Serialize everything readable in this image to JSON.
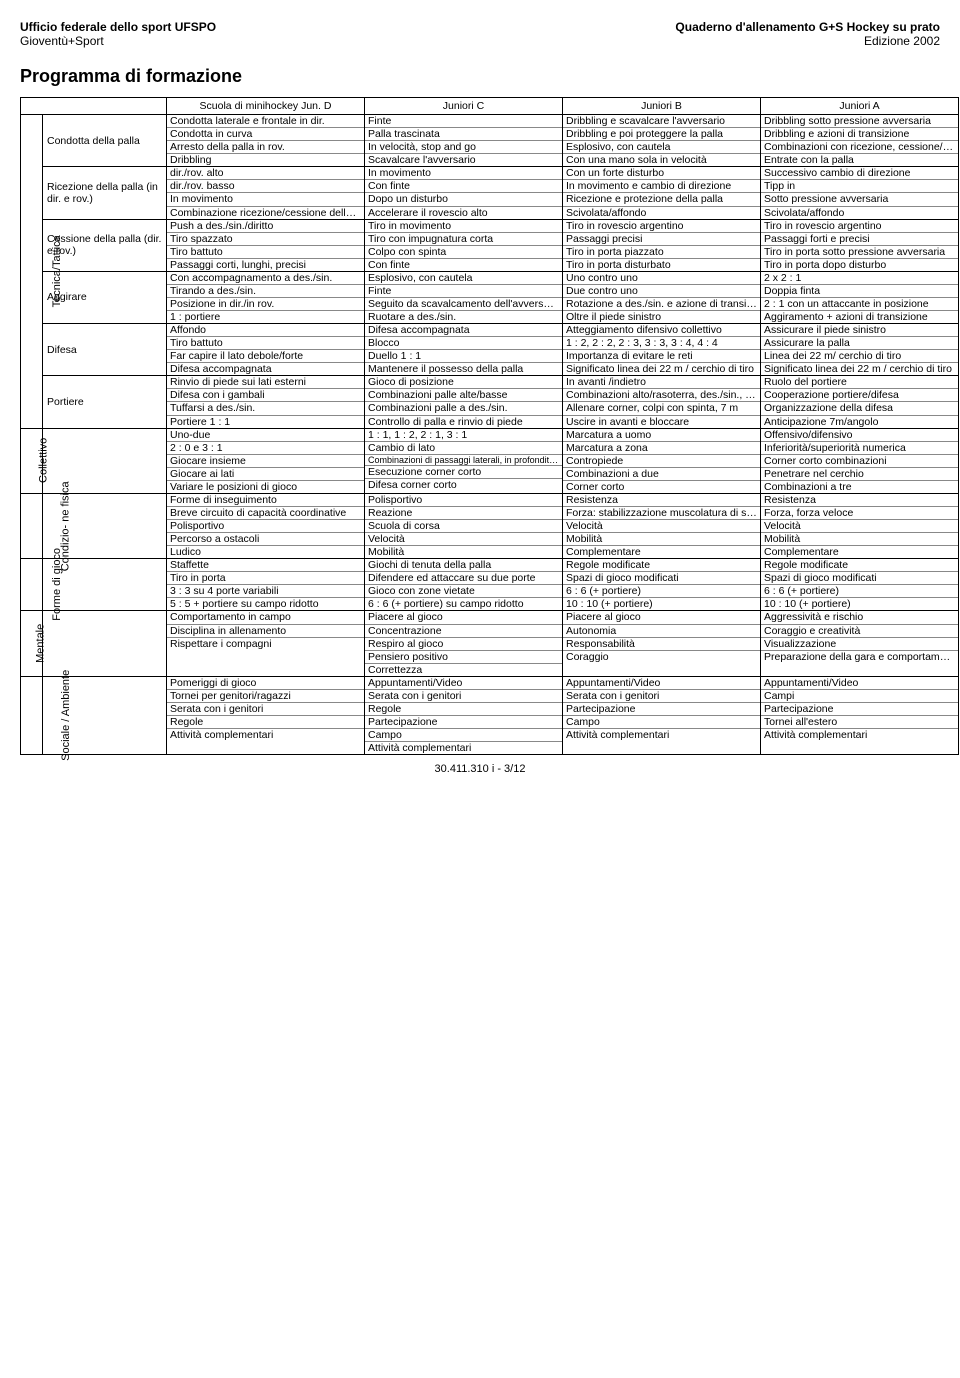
{
  "header": {
    "org": "Ufficio federale dello sport UFSPO",
    "sub_org": "Gioventù+Sport",
    "quaderno": "Quaderno d'allenamento G+S Hockey su prato",
    "edition": "Edizione 2002"
  },
  "page_title": "Programma di formazione",
  "levels": [
    "Scuola di minihockey Jun. D",
    "Juniori C",
    "Juniori B",
    "Juniori A"
  ],
  "sections": [
    {
      "vgroup": "Tecnica/Tattica",
      "categories": [
        {
          "label": "Condotta della palla",
          "rows": [
            [
              "Condotta laterale e frontale in dir.",
              "Finte",
              "Dribbling e scavalcare l'avversario",
              "Dribbling sotto pressione avversaria"
            ],
            [
              "Condotta in curva",
              "Palla trascinata",
              "Dribbling e poi proteggere la palla",
              "Dribbling e azioni di transizione"
            ],
            [
              "Arresto della palla in rov.",
              "In velocità, stop and go",
              "Esplosivo, con cautela",
              "Combinazioni con ricezione, cessione/dribbling"
            ],
            [
              "Dribbling",
              "Scavalcare l'avversario",
              "Con una mano sola in velocità",
              "Entrate con la palla"
            ]
          ]
        },
        {
          "label": "Ricezione della palla (in dir. e rov.)",
          "rows": [
            [
              "dir./rov. alto",
              "In movimento",
              "Con un forte disturbo",
              "Successivo cambio di direzione"
            ],
            [
              "dir./rov. basso",
              "Con finte",
              "In movimento e cambio di direzione",
              "Tipp in"
            ],
            [
              "In movimento",
              "Dopo un disturbo",
              "Ricezione e protezione della palla",
              "Sotto pressione avversaria"
            ],
            [
              "Combinazione ricezione/cessione della palla",
              "Accelerare il rovescio alto",
              "Scivolata/affondo",
              "Scivolata/affondo"
            ]
          ]
        },
        {
          "label": "Cessione della palla (dir. e rov.)",
          "rows": [
            [
              "Push a des./sin./diritto",
              "Tiro in movimento",
              "Tiro in rovescio argentino",
              "Tiro in rovescio argentino"
            ],
            [
              "Tiro spazzato",
              "Tiro con impugnatura corta",
              "Passaggi precisi",
              "Passaggi forti e precisi"
            ],
            [
              "Tiro battuto",
              "Colpo con spinta",
              "Tiro in porta piazzato",
              "Tiro in porta sotto pressione avversaria"
            ],
            [
              "Passaggi corti, lunghi, precisi",
              "Con finte",
              "Tiro in porta disturbato",
              "Tiro in porta dopo disturbo"
            ]
          ]
        },
        {
          "label": "Aggirare",
          "rows": [
            [
              "Con accompagnamento a des./sin.",
              "Esplosivo, con cautela",
              "Uno contro uno",
              "2 x 2 : 1"
            ],
            [
              "Tirando a des./sin.",
              "Finte",
              "Due contro uno",
              "Doppia finta"
            ],
            [
              "Posizione in dir./in rov.",
              "Seguito da scavalcamento dell'avversario",
              "Rotazione a des./sin. e azione di transizione",
              "2 : 1 con un attaccante in posizione"
            ],
            [
              "1 : portiere",
              "Ruotare a des./sin.",
              "Oltre il piede sinistro",
              "Aggiramento + azioni di transizione"
            ]
          ]
        },
        {
          "label": "Difesa",
          "rows": [
            [
              "Affondo",
              "Difesa accompagnata",
              "Atteggiamento difensivo collettivo",
              "Assicurare il piede sinistro"
            ],
            [
              "Tiro battuto",
              "Blocco",
              "1 : 2, 2 : 2, 2 : 3, 3 : 3, 3 : 4, 4 : 4",
              "Assicurare la palla"
            ],
            [
              "Far capire il lato debole/forte",
              "Duello 1 : 1",
              "Importanza di evitare le reti",
              "Linea dei 22 m/ cerchio di tiro"
            ],
            [
              "Difesa accompagnata",
              "Mantenere il possesso della palla",
              "Significato linea dei 22 m / cerchio di tiro",
              "Significato linea dei 22 m / cerchio di tiro"
            ]
          ]
        },
        {
          "label": "Portiere",
          "rows": [
            [
              "Rinvio di piede sui lati esterni",
              "Gioco di posizione",
              "In avanti /indietro",
              "Ruolo del portiere"
            ],
            [
              "Difesa con i gambali",
              "Combinazioni palle alte/basse",
              "Combinazioni alto/rasoterra, des./sin., forte/ piano",
              "Cooperazione portiere/difesa"
            ],
            [
              "Tuffarsi a des./sin.",
              "Combinazioni palle a des./sin.",
              "Allenare corner, colpi con spinta, 7 m",
              "Organizzazione della difesa"
            ],
            [
              "Portiere 1 : 1",
              "Controllo di palla e rinvio di piede",
              "Uscire in avanti e bloccare",
              "Anticipazione 7m/angolo"
            ]
          ]
        }
      ]
    },
    {
      "vgroup": "Collettivo",
      "categories": [
        {
          "label": "",
          "rows": [
            [
              "Uno-due",
              "1 : 1, 1 : 2, 2 : 1, 3 : 1",
              "Marcatura a uomo",
              "Offensivo/difensivo"
            ],
            [
              "2 : 0 e 3 : 1",
              "Cambio di lato",
              "Marcatura a zona",
              "Inferiorità/superiorità numerica"
            ],
            [
              "Giocare insieme",
              "Combinazioni di passaggi laterali, in profondità, in diagonale",
              "Contropiede",
              "Corner corto combinazioni"
            ],
            [
              "Giocare ai lati",
              "Esecuzione corner corto",
              "Combinazioni a due",
              "Penetrare nel cerchio"
            ],
            [
              "Variare le posizioni di gioco",
              "Difesa corner corto",
              "Corner corto",
              "Combinazioni a tre"
            ]
          ]
        }
      ]
    },
    {
      "vgroup": "Condizio- ne fisica",
      "categories": [
        {
          "label": "",
          "rows": [
            [
              "Forme di inseguimento",
              "Polisportivo",
              "Resistenza",
              "Resistenza"
            ],
            [
              "Breve circuito di capacità coordinative",
              "Reazione",
              "Forza: stabilizzazione muscolatura di sostegno",
              "Forza, forza veloce"
            ],
            [
              "Polisportivo",
              "Scuola di corsa",
              "Velocità",
              "Velocità"
            ],
            [
              "Percorso a ostacoli",
              "Velocità",
              "Mobilità",
              "Mobilità"
            ],
            [
              "Ludico",
              "Mobilità",
              "Complementare",
              "Complementare"
            ]
          ]
        }
      ]
    },
    {
      "vgroup": "Forme di gioco",
      "categories": [
        {
          "label": "",
          "rows": [
            [
              "Staffette",
              "Giochi di tenuta della palla",
              "Regole modificate",
              "Regole modificate"
            ],
            [
              "Tiro in porta",
              "Difendere ed attaccare su due porte",
              "Spazi di gioco modificati",
              "Spazi di gioco modificati"
            ],
            [
              "3 : 3 su 4 porte variabili",
              "Gioco con zone vietate",
              "6 : 6 (+ portiere)",
              "6 : 6 (+ portiere)"
            ],
            [
              "5 : 5 + portiere su campo ridotto",
              "6 : 6 (+ portiere) su campo ridotto",
              "10 : 10 (+ portiere)",
              "10 : 10 (+ portiere)"
            ]
          ]
        }
      ]
    },
    {
      "vgroup": "Mentale",
      "categories": [
        {
          "label": "",
          "rows": [
            [
              "Comportamento in campo",
              "Piacere al gioco",
              "Piacere al gioco",
              "Aggressività e rischio"
            ],
            [
              "Disciplina in allenamento",
              "Concentrazione",
              "Autonomia",
              "Coraggio e creatività"
            ],
            [
              "Rispettare i compagni",
              "Respiro al gioco",
              "Responsabilità",
              "Visualizzazione"
            ],
            [
              "",
              "Pensiero positivo",
              "Coraggio",
              "Preparazione della gara e comportamento"
            ],
            [
              "",
              "Correttezza",
              "",
              ""
            ]
          ]
        }
      ]
    },
    {
      "vgroup": "Sociale / Ambiente",
      "categories": [
        {
          "label": "",
          "rows": [
            [
              "Pomeriggi di gioco",
              "Appuntamenti/Video",
              "Appuntamenti/Video",
              "Appuntamenti/Video"
            ],
            [
              "Tornei per genitori/ragazzi",
              "Serata con i genitori",
              "Serata con i genitori",
              "Campi"
            ],
            [
              "Serata con i genitori",
              "Regole",
              "Partecipazione",
              "Partecipazione"
            ],
            [
              "Regole",
              "Partecipazione",
              "Campo",
              "Tornei all'estero"
            ],
            [
              "Attività complementari",
              "Campo",
              "Attività complementari",
              "Attività complementari"
            ],
            [
              "",
              "Attività complementari",
              "",
              ""
            ]
          ]
        }
      ]
    }
  ],
  "footer": "30.411.310 i - 3/12"
}
